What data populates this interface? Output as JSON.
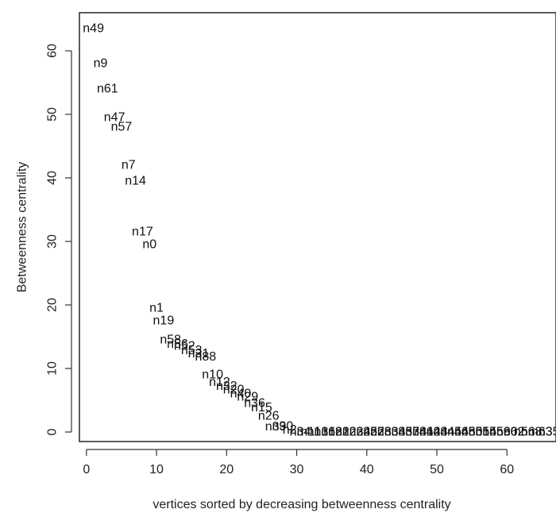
{
  "chart_data": {
    "type": "scatter",
    "xlabel": "vertices sorted by decreasing betweenness centrality",
    "ylabel": "Betweenness centrality",
    "xlim": [
      -1,
      67
    ],
    "ylim": [
      -1.5,
      66
    ],
    "x_ticks": [
      0,
      10,
      20,
      30,
      40,
      50,
      60
    ],
    "y_ticks": [
      0,
      10,
      20,
      30,
      40,
      50,
      60
    ],
    "marker": "vertex name text label",
    "grid": false,
    "points": [
      {
        "x": 1,
        "y": 63.5,
        "label": "n49"
      },
      {
        "x": 2,
        "y": 58.0,
        "label": "n9"
      },
      {
        "x": 3,
        "y": 54.0,
        "label": "n61"
      },
      {
        "x": 4,
        "y": 49.5,
        "label": "n47"
      },
      {
        "x": 5,
        "y": 48.0,
        "label": "n57"
      },
      {
        "x": 6,
        "y": 42.0,
        "label": "n7"
      },
      {
        "x": 7,
        "y": 39.5,
        "label": "n14"
      },
      {
        "x": 8,
        "y": 31.5,
        "label": "n17"
      },
      {
        "x": 9,
        "y": 29.5,
        "label": "n0"
      },
      {
        "x": 10,
        "y": 19.5,
        "label": "n1"
      },
      {
        "x": 11,
        "y": 17.5,
        "label": "n19"
      },
      {
        "x": 12,
        "y": 14.5,
        "label": "n58"
      },
      {
        "x": 13,
        "y": 13.8,
        "label": "n56"
      },
      {
        "x": 14,
        "y": 13.5,
        "label": "n52"
      },
      {
        "x": 15,
        "y": 12.8,
        "label": "n53"
      },
      {
        "x": 16,
        "y": 12.3,
        "label": "n31"
      },
      {
        "x": 17,
        "y": 11.8,
        "label": "n88"
      },
      {
        "x": 18,
        "y": 9.0,
        "label": "n10"
      },
      {
        "x": 19,
        "y": 7.8,
        "label": "n12"
      },
      {
        "x": 20,
        "y": 7.2,
        "label": "n32"
      },
      {
        "x": 21,
        "y": 6.6,
        "label": "n20"
      },
      {
        "x": 22,
        "y": 6.0,
        "label": "n40"
      },
      {
        "x": 23,
        "y": 5.5,
        "label": "n29"
      },
      {
        "x": 24,
        "y": 4.5,
        "label": "n36"
      },
      {
        "x": 25,
        "y": 3.8,
        "label": "n15"
      },
      {
        "x": 26,
        "y": 2.5,
        "label": "n26"
      },
      {
        "x": 27,
        "y": 0.8,
        "label": "n39"
      },
      {
        "x": 28,
        "y": 0.9,
        "label": "n30"
      },
      {
        "x": 29,
        "y": 0.3,
        "label": "n2"
      },
      {
        "x": 30,
        "y": 0,
        "label": "n3"
      },
      {
        "x": 31,
        "y": 0,
        "label": "n4"
      },
      {
        "x": 32,
        "y": 0,
        "label": "n11"
      },
      {
        "x": 33,
        "y": 0,
        "label": "n13"
      },
      {
        "x": 34,
        "y": 0,
        "label": "n16"
      },
      {
        "x": 35,
        "y": 0,
        "label": "n18"
      },
      {
        "x": 36,
        "y": 0,
        "label": "n21"
      },
      {
        "x": 37,
        "y": 0,
        "label": "n22"
      },
      {
        "x": 38,
        "y": 0,
        "label": "n23"
      },
      {
        "x": 39,
        "y": 0,
        "label": "n24"
      },
      {
        "x": 40,
        "y": 0,
        "label": "n25"
      },
      {
        "x": 41,
        "y": 0,
        "label": "n27"
      },
      {
        "x": 42,
        "y": 0,
        "label": "n28"
      },
      {
        "x": 43,
        "y": 0,
        "label": "n33"
      },
      {
        "x": 44,
        "y": 0,
        "label": "n34"
      },
      {
        "x": 45,
        "y": 0,
        "label": "n35"
      },
      {
        "x": 46,
        "y": 0,
        "label": "n37"
      },
      {
        "x": 47,
        "y": 0,
        "label": "n38"
      },
      {
        "x": 48,
        "y": 0,
        "label": "n41"
      },
      {
        "x": 49,
        "y": 0,
        "label": "n42"
      },
      {
        "x": 50,
        "y": 0,
        "label": "n43"
      },
      {
        "x": 51,
        "y": 0,
        "label": "n44"
      },
      {
        "x": 52,
        "y": 0,
        "label": "n45"
      },
      {
        "x": 53,
        "y": 0,
        "label": "n46"
      },
      {
        "x": 54,
        "y": 0,
        "label": "n48"
      },
      {
        "x": 55,
        "y": 0,
        "label": "n50"
      },
      {
        "x": 56,
        "y": 0,
        "label": "n51"
      },
      {
        "x": 57,
        "y": 0,
        "label": "n54"
      },
      {
        "x": 58,
        "y": 0,
        "label": "n55"
      },
      {
        "x": 59,
        "y": 0,
        "label": "n59"
      },
      {
        "x": 60,
        "y": 0,
        "label": "n60"
      },
      {
        "x": 61,
        "y": 0,
        "label": "n62"
      },
      {
        "x": 62,
        "y": 0,
        "label": "n5"
      },
      {
        "x": 63,
        "y": 0,
        "label": "n6"
      },
      {
        "x": 64,
        "y": 0,
        "label": "n8"
      },
      {
        "x": 65,
        "y": 0,
        "label": "n63"
      },
      {
        "x": 66,
        "y": 0,
        "label": "n35"
      }
    ]
  }
}
